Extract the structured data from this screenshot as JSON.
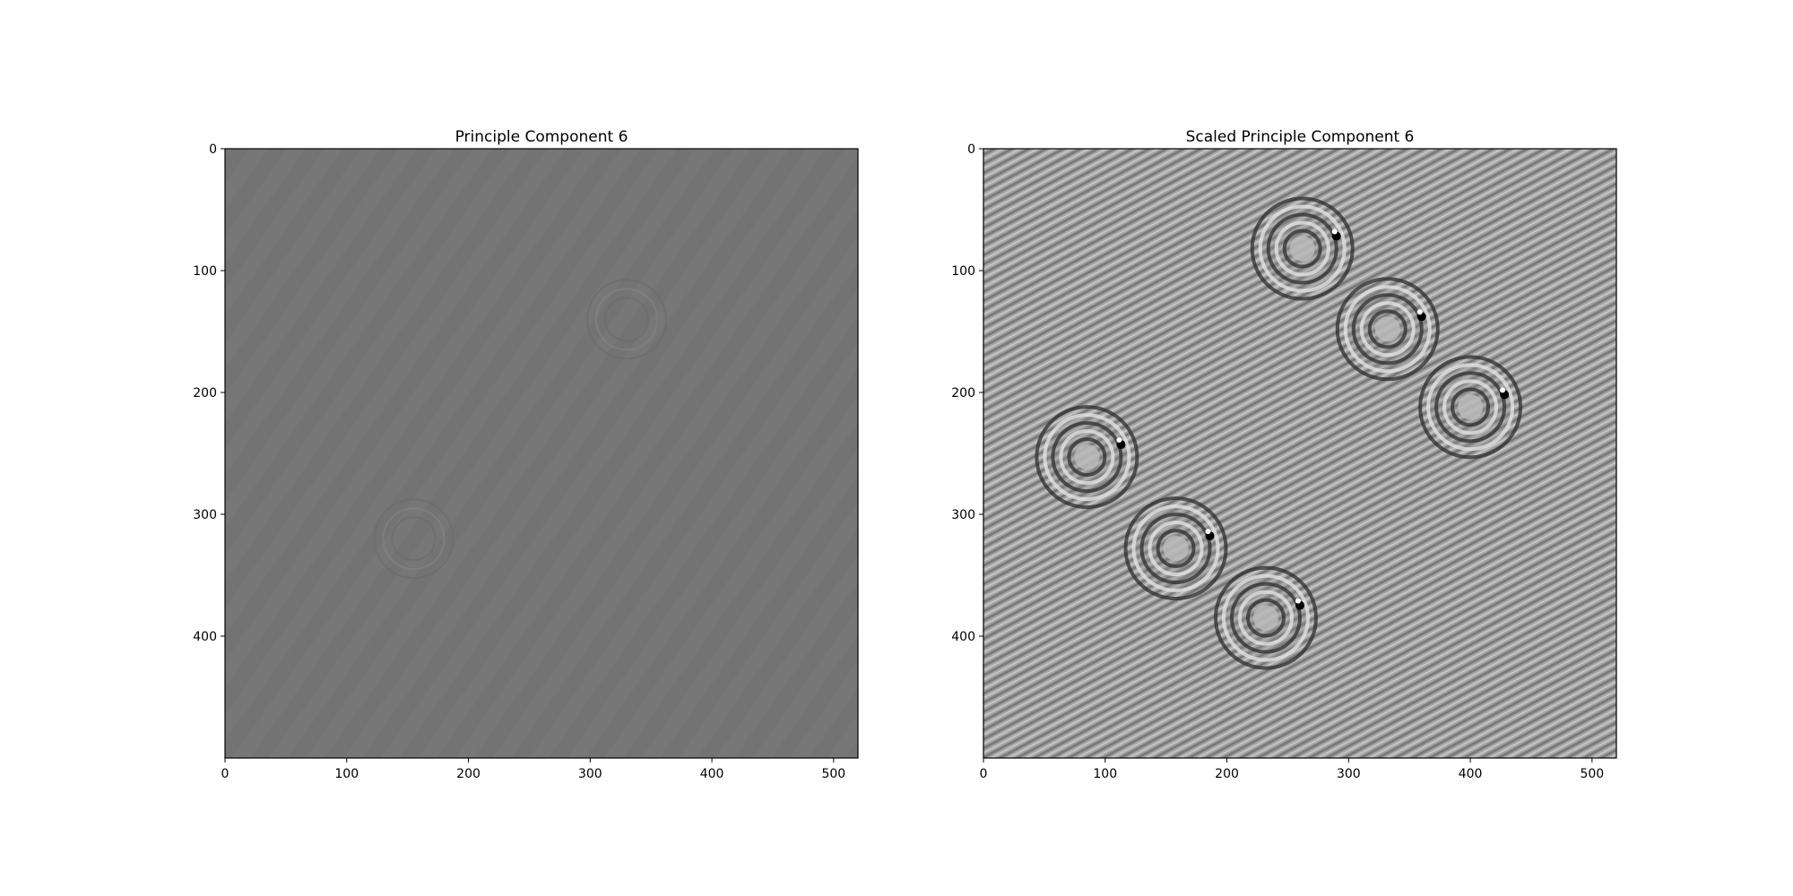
{
  "figure": {
    "panels": [
      {
        "title": "Principle Component 6",
        "contrast": "low"
      },
      {
        "title": "Scaled Principle Component 6",
        "contrast": "high"
      }
    ]
  },
  "chart_data": [
    {
      "type": "heatmap",
      "title": "Principle Component 6",
      "colormap": "gray",
      "image_width": 520,
      "image_height": 500,
      "xlim": [
        0,
        520
      ],
      "ylim": [
        500,
        0
      ],
      "xticks": [
        0,
        100,
        200,
        300,
        400,
        500
      ],
      "yticks": [
        0,
        100,
        200,
        300,
        400
      ],
      "features": [
        {
          "kind": "ring",
          "x": 330,
          "y": 140
        },
        {
          "kind": "ring",
          "x": 155,
          "y": 320
        },
        {
          "kind": "diagonal-fringes"
        }
      ]
    },
    {
      "type": "heatmap",
      "title": "Scaled Principle Component 6",
      "colormap": "gray",
      "image_width": 520,
      "image_height": 500,
      "xlim": [
        0,
        520
      ],
      "ylim": [
        500,
        0
      ],
      "xticks": [
        0,
        100,
        200,
        300,
        400,
        500
      ],
      "yticks": [
        0,
        100,
        200,
        300,
        400
      ],
      "features": [
        {
          "kind": "ring",
          "x": 262,
          "y": 82
        },
        {
          "kind": "ring",
          "x": 332,
          "y": 148
        },
        {
          "kind": "ring",
          "x": 400,
          "y": 212
        },
        {
          "kind": "ring",
          "x": 85,
          "y": 253
        },
        {
          "kind": "ring",
          "x": 158,
          "y": 328
        },
        {
          "kind": "ring",
          "x": 232,
          "y": 385
        },
        {
          "kind": "diagonal-fringes"
        }
      ]
    }
  ],
  "colors": {
    "low_contrast_gray": "#767676",
    "high_contrast_gray": "#9a9a9a",
    "axis": "#000000"
  }
}
